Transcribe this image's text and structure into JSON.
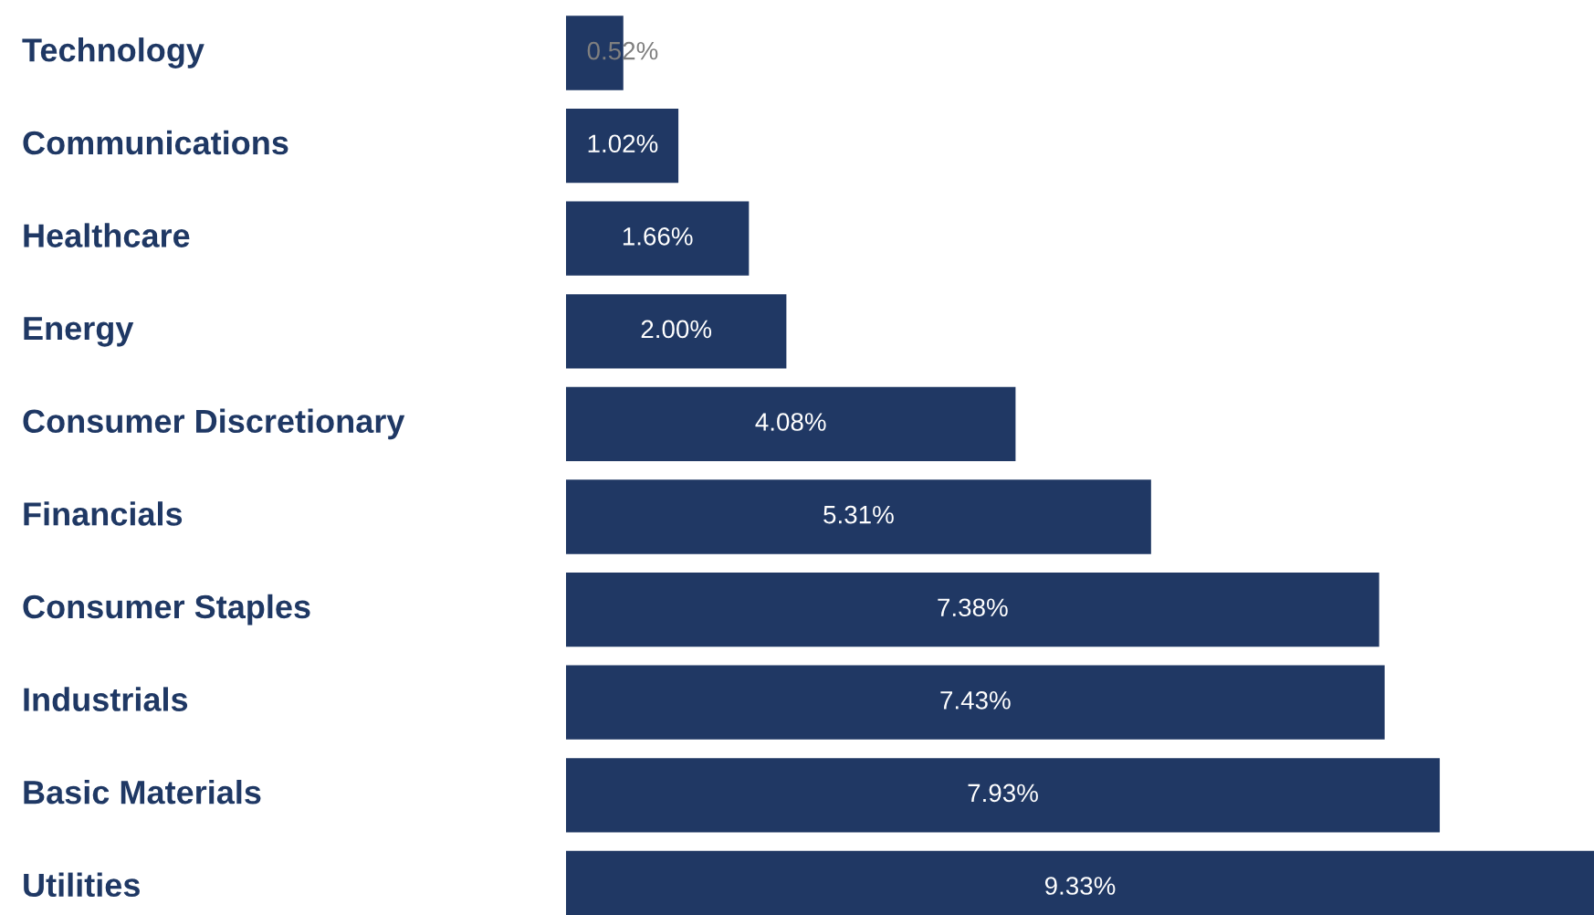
{
  "chart_data": {
    "type": "bar",
    "orientation": "horizontal",
    "color": "#203864",
    "categories": [
      "Technology",
      "Communications",
      "Healthcare",
      "Energy",
      "Consumer Discretionary",
      "Financials",
      "Consumer Staples",
      "Industrials",
      "Basic Materials",
      "Utilities"
    ],
    "values": [
      0.52,
      1.02,
      1.66,
      2.0,
      4.08,
      5.31,
      7.38,
      7.43,
      7.93,
      9.33
    ],
    "value_labels": [
      "0.52%",
      "1.02%",
      "1.66%",
      "2.00%",
      "4.08%",
      "5.31%",
      "7.38%",
      "7.43%",
      "7.93%",
      "9.33%"
    ]
  }
}
